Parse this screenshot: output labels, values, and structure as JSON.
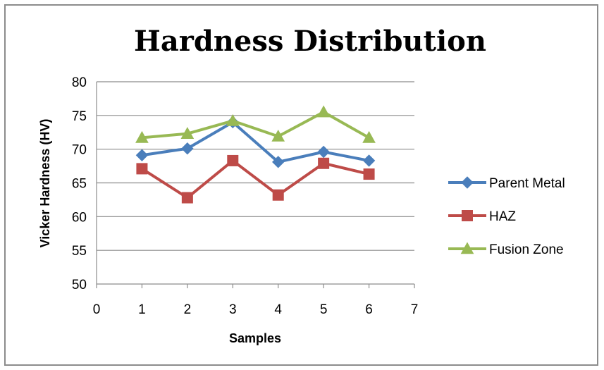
{
  "chart_data": {
    "type": "line",
    "title": "Hardness Distribution",
    "xlabel": "Samples",
    "ylabel": "Vicker Hardness (HV)",
    "xlim": [
      0,
      7
    ],
    "ylim": [
      50,
      80
    ],
    "xticks": [
      "0",
      "1",
      "2",
      "3",
      "4",
      "5",
      "6",
      "7"
    ],
    "yticks": [
      "50",
      "55",
      "60",
      "65",
      "70",
      "75",
      "80"
    ],
    "grid": "horizontal",
    "legend_position": "right",
    "x": [
      1,
      2,
      3,
      4,
      5,
      6
    ],
    "series": [
      {
        "name": "Parent Metal",
        "values": [
          69.1,
          70.1,
          74.0,
          68.1,
          69.6,
          68.3
        ],
        "color": "#4a7ebb",
        "marker": "diamond"
      },
      {
        "name": "HAZ",
        "values": [
          67.1,
          62.8,
          68.3,
          63.2,
          67.9,
          66.3
        ],
        "color": "#be4b48",
        "marker": "square"
      },
      {
        "name": "Fusion Zone",
        "values": [
          71.7,
          72.3,
          74.2,
          71.9,
          75.5,
          71.7
        ],
        "color": "#98b954",
        "marker": "triangle"
      }
    ]
  }
}
